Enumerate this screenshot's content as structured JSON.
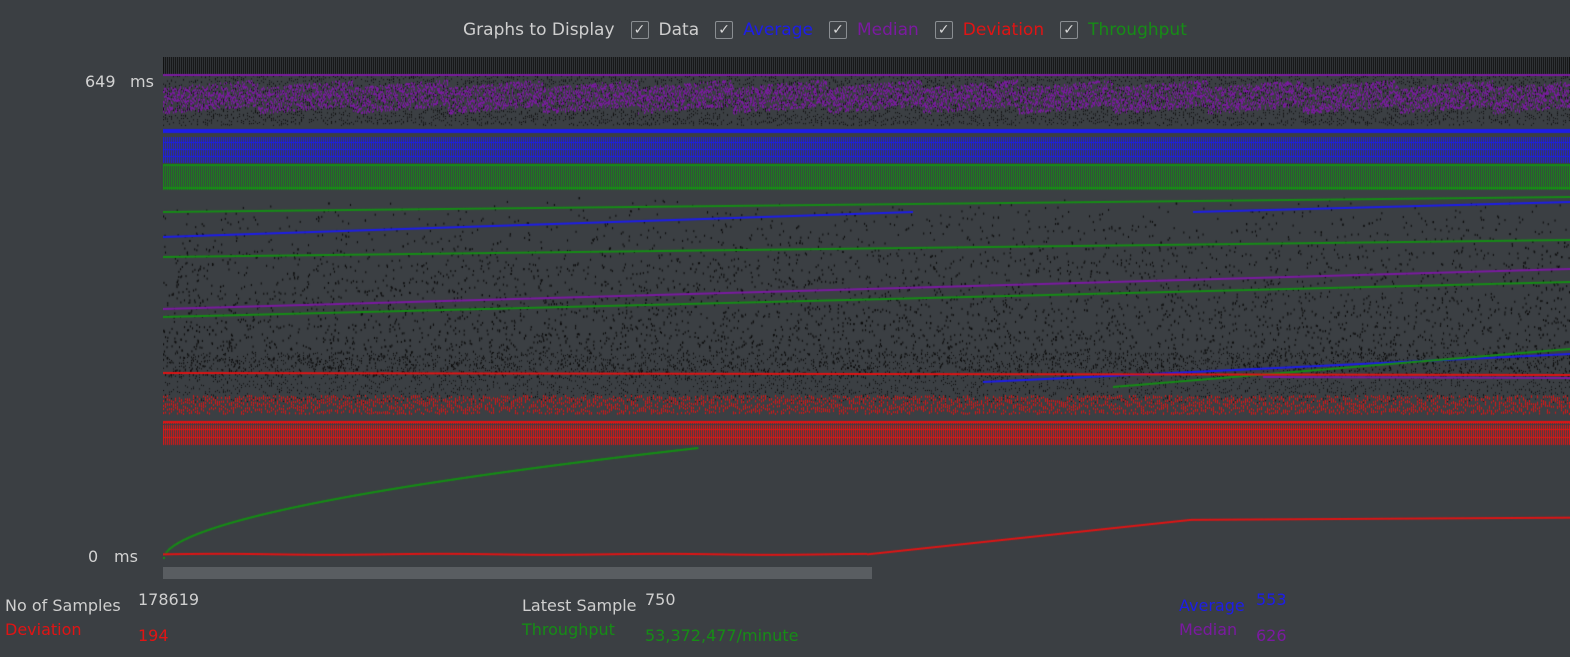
{
  "legend": {
    "title": "Graphs to Display",
    "items": [
      {
        "label": "Data",
        "color": "#cfcfcf",
        "checked": true
      },
      {
        "label": "Average",
        "color": "#1d1de8",
        "checked": true
      },
      {
        "label": "Median",
        "color": "#7a1aa0",
        "checked": true
      },
      {
        "label": "Deviation",
        "color": "#e01414",
        "checked": true
      },
      {
        "label": "Throughput",
        "color": "#168c16",
        "checked": true
      }
    ]
  },
  "check_glyph": "✓",
  "y_axis": {
    "max_label": "649",
    "min_label": "0",
    "unit": "ms"
  },
  "stats": {
    "samples_label": "No of Samples",
    "samples_value": "178619",
    "latest_label": "Latest Sample",
    "latest_value": "750",
    "average_label": "Average",
    "average_value": "553",
    "deviation_label": "Deviation",
    "deviation_value": "194",
    "throughput_label": "Throughput",
    "throughput_value": "53,372,477/minute",
    "median_label": "Median",
    "median_value": "626"
  },
  "colors": {
    "data": "#0b0b0b",
    "average": "#1d1de8",
    "median": "#7a1aa0",
    "deviation": "#e01414",
    "throughput": "#168c16",
    "plot_bg": "#3b3f43"
  },
  "chart_data": {
    "type": "scatter",
    "y_unit": "ms",
    "ylim": [
      0,
      649
    ],
    "samples": 178619,
    "series": [
      {
        "name": "Data",
        "color": "#0b0b0b"
      },
      {
        "name": "Average",
        "color": "#1d1de8"
      },
      {
        "name": "Median",
        "color": "#7a1aa0"
      },
      {
        "name": "Deviation",
        "color": "#e01414"
      },
      {
        "name": "Throughput",
        "color": "#168c16"
      }
    ],
    "deviation_trend": {
      "x": [
        0,
        0.5,
        0.73,
        1.0
      ],
      "y": [
        5,
        5,
        52,
        55
      ]
    },
    "throughput_trend": {
      "x": [
        0,
        0.05,
        0.2,
        0.38
      ],
      "y": [
        0,
        70,
        105,
        150
      ]
    }
  }
}
